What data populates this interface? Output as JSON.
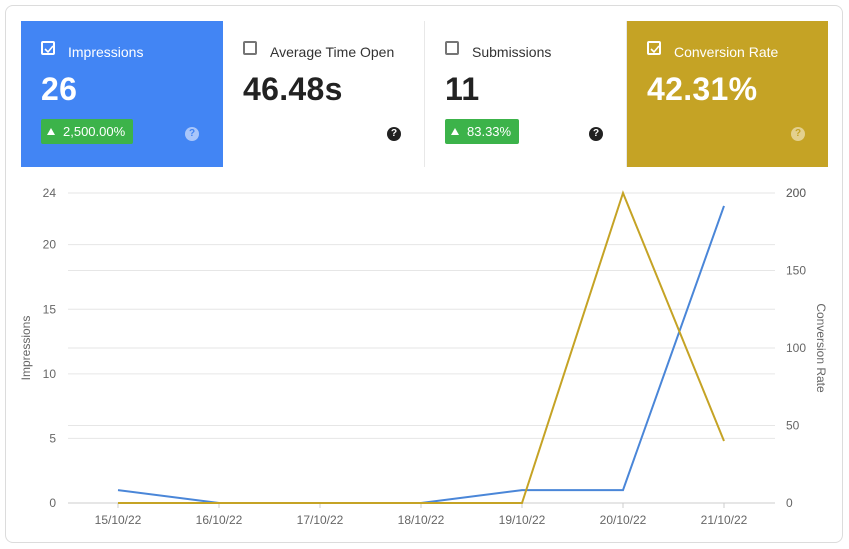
{
  "tiles": [
    {
      "label": "Impressions",
      "value": "26",
      "checked": true,
      "change": "2,500.00%",
      "help": "?",
      "color": "#4285f4"
    },
    {
      "label": "Average Time Open",
      "value": "46.48s",
      "checked": false,
      "help": "?"
    },
    {
      "label": "Submissions",
      "value": "11",
      "checked": false,
      "change": "83.33%",
      "help": "?"
    },
    {
      "label": "Conversion Rate",
      "value": "42.31%",
      "checked": true,
      "help": "?",
      "color": "#c5a325"
    }
  ],
  "chart_data": {
    "type": "line",
    "x": [
      "15/10/22",
      "16/10/22",
      "17/10/22",
      "18/10/22",
      "19/10/22",
      "20/10/22",
      "21/10/22"
    ],
    "series": [
      {
        "name": "Impressions",
        "axis": "left",
        "color": "#4a86d8",
        "values": [
          1,
          0,
          0,
          0,
          1,
          1,
          23
        ]
      },
      {
        "name": "Conversion Rate",
        "axis": "right",
        "color": "#c5a325",
        "values": [
          0,
          0,
          0,
          0,
          0,
          200,
          40
        ]
      }
    ],
    "ylabel": "Impressions",
    "y2label": "Conversion Rate",
    "ylim": [
      0,
      24
    ],
    "y2lim": [
      0,
      200
    ],
    "yticks": [
      "0",
      "5",
      "10",
      "15",
      "20",
      "24"
    ],
    "y2ticks": [
      "0",
      "50",
      "100",
      "150",
      "200",
      "200"
    ],
    "grid": true
  }
}
